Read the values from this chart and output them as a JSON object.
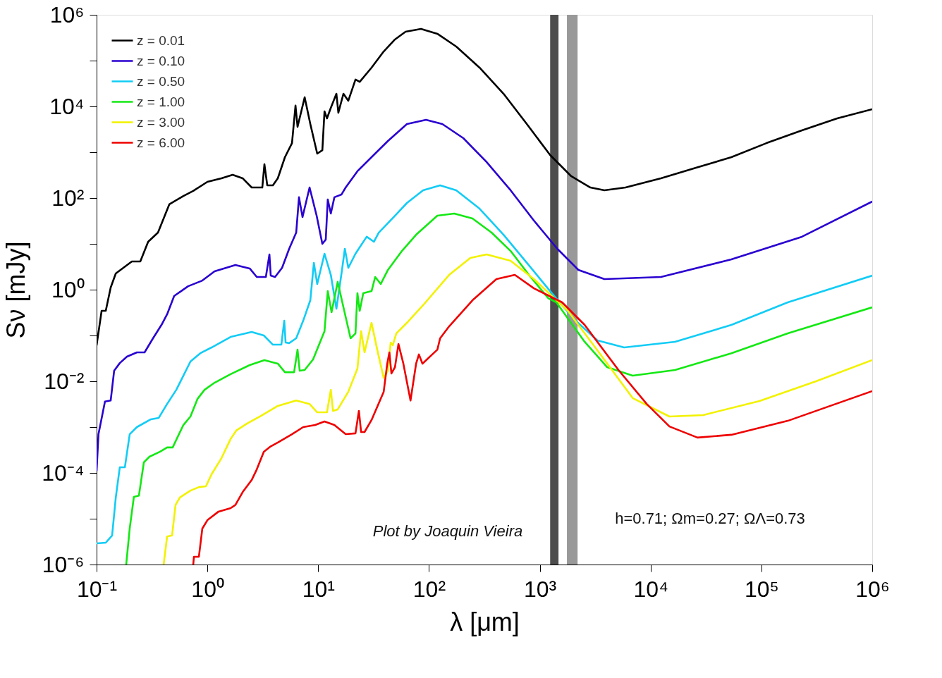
{
  "chart_data": {
    "type": "line",
    "xlabel": "λ [μm]",
    "ylabel": "Sν [mJy]",
    "log": "xy",
    "xlim": [
      0.1,
      1000000
    ],
    "ylim": [
      1e-06,
      1000000
    ],
    "xticks": [
      {
        "value": 0.1,
        "label": "10⁻¹"
      },
      {
        "value": 1,
        "label": "10⁰"
      },
      {
        "value": 10,
        "label": "10¹"
      },
      {
        "value": 100,
        "label": "10²"
      },
      {
        "value": 1000,
        "label": "10³"
      },
      {
        "value": 10000,
        "label": "10⁴"
      },
      {
        "value": 100000,
        "label": "10⁵"
      },
      {
        "value": 1000000,
        "label": "10⁶"
      }
    ],
    "yticks": [
      {
        "value": 1e-06,
        "label": "10⁻⁶"
      },
      {
        "value": 1e-05,
        "label": null
      },
      {
        "value": 0.0001,
        "label": "10⁻⁴"
      },
      {
        "value": 0.001,
        "label": null
      },
      {
        "value": 0.01,
        "label": "10⁻²"
      },
      {
        "value": 0.1,
        "label": null
      },
      {
        "value": 1,
        "label": "10⁰"
      },
      {
        "value": 10,
        "label": null
      },
      {
        "value": 100,
        "label": "10²"
      },
      {
        "value": 1000,
        "label": null
      },
      {
        "value": 10000,
        "label": "10⁴"
      },
      {
        "value": 100000,
        "label": null
      },
      {
        "value": 1000000,
        "label": "10⁶"
      }
    ],
    "legend": "top left",
    "grid": false,
    "marker": "none",
    "line_style": "solid",
    "bands": [
      {
        "axis": "x",
        "from": 1240,
        "to": 1475,
        "color": "#4d4d4d"
      },
      {
        "axis": "x",
        "from": 1757,
        "to": 2193,
        "color": "#999999"
      }
    ],
    "annotations": [
      "Plot by Joaquin Vieira",
      "h=0.71; Ωm=0.27; ΩΛ=0.73"
    ],
    "series": [
      {
        "name": "z = 0.01",
        "color": "#000000",
        "x": [
          0.1,
          0.111,
          0.121,
          0.134,
          0.149,
          0.208,
          0.248,
          0.292,
          0.358,
          0.453,
          0.607,
          0.745,
          1.0,
          1.34,
          1.69,
          2.08,
          2.51,
          3.13,
          3.27,
          3.47,
          3.9,
          4.32,
          5.01,
          5.8,
          6.24,
          6.51,
          7.55,
          8.49,
          9.8,
          10.9,
          11.4,
          12.0,
          13.0,
          14.6,
          15.2,
          16.9,
          18.7,
          21.7,
          23.7,
          30.3,
          39.0,
          49.3,
          61.4,
          84.7,
          119,
          176,
          286,
          471,
          764,
          1240,
          1920,
          2860,
          3830,
          5940,
          12400,
          25700,
          53600,
          111000,
          232000,
          483000,
          1000000
        ],
        "values": [
          0.061,
          0.345,
          0.345,
          1.11,
          2.26,
          4.12,
          4.12,
          11.1,
          17.6,
          72.8,
          111,
          143,
          226,
          270,
          322,
          270,
          170,
          170,
          547,
          189,
          189,
          270,
          780,
          1580,
          10400,
          3580,
          15800,
          4120,
          931,
          1110,
          7800,
          5470,
          9310,
          18900,
          7280,
          18900,
          13300,
          38500,
          34500,
          70200,
          158000,
          290000,
          428000,
          492000,
          385000,
          203000,
          70200,
          18900,
          4120,
          867,
          300,
          170,
          148,
          170,
          270,
          459,
          780,
          1580,
          3000,
          5470,
          8670
        ]
      },
      {
        "name": "z = 0.10",
        "color": "#2a00d0",
        "x": [
          0.1,
          0.104,
          0.119,
          0.134,
          0.144,
          0.162,
          0.188,
          0.231,
          0.271,
          0.323,
          0.385,
          0.433,
          0.501,
          0.67,
          0.9,
          1.16,
          1.79,
          2.41,
          2.79,
          3.37,
          3.63,
          3.73,
          4.08,
          4.72,
          5.47,
          6.33,
          6.71,
          7.22,
          8.36,
          9.68,
          10.9,
          11.7,
          12.2,
          13.0,
          14.0,
          16.2,
          17.7,
          22.6,
          30.3,
          42.6,
          63.2,
          94.0,
          132,
          204,
          331,
          545,
          885,
          1440,
          2230,
          3830,
          12400,
          53600,
          232000,
          1000000
        ],
        "values": [
          0.00011,
          0.0007,
          0.0036,
          0.0038,
          0.017,
          0.025,
          0.0345,
          0.0428,
          0.0428,
          0.0868,
          0.17,
          0.29,
          0.727,
          1.19,
          1.58,
          2.51,
          3.45,
          2.9,
          1.89,
          1.89,
          5.87,
          2.03,
          1.89,
          3.0,
          7.8,
          17.6,
          104,
          38.5,
          170,
          41.2,
          10,
          12.4,
          93,
          45.9,
          104,
          119,
          170,
          385,
          780,
          1760,
          4120,
          5100,
          4120,
          2030,
          610,
          148,
          32.2,
          7.8,
          2.7,
          1.7,
          1.89,
          4.59,
          14.3,
          83.8
        ]
      },
      {
        "name": "z = 0.50",
        "color": "#12ccf5",
        "x": [
          0.1,
          0.121,
          0.138,
          0.149,
          0.162,
          0.18,
          0.199,
          0.231,
          0.309,
          0.363,
          0.433,
          0.524,
          0.703,
          0.863,
          1.09,
          1.62,
          2.51,
          3.23,
          3.9,
          4.65,
          4.94,
          5.08,
          5.47,
          6.33,
          7.32,
          8.49,
          9.14,
          9.8,
          11.4,
          13.0,
          14.6,
          16.4,
          17.4,
          18.7,
          21.7,
          27.4,
          31.8,
          35.2,
          49.3,
          63.2,
          88.5,
          126,
          176,
          286,
          471,
          764,
          1240,
          2040,
          3310,
          5770,
          16600,
          53600,
          173000,
          1000000
        ],
        "values": [
          2.9e-06,
          3e-06,
          4.3e-06,
          2.9e-05,
          0.000133,
          0.000133,
          0.0007,
          0.001,
          0.00148,
          0.00158,
          0.0032,
          0.0065,
          0.027,
          0.041,
          0.0547,
          0.093,
          0.119,
          0.1,
          0.063,
          0.063,
          0.21,
          0.07,
          0.068,
          0.0868,
          0.21,
          0.587,
          3.85,
          1.33,
          6.09,
          2.1,
          0.385,
          2.7,
          7.8,
          3.0,
          6.09,
          14.3,
          11.1,
          17.6,
          41.2,
          78,
          148,
          189,
          148,
          58.7,
          15.8,
          3.85,
          0.93,
          0.226,
          0.078,
          0.0547,
          0.0728,
          0.17,
          0.528,
          2.03
        ]
      },
      {
        "name": "z = 1.00",
        "color": "#14e814",
        "x": [
          0.185,
          0.199,
          0.217,
          0.241,
          0.267,
          0.3,
          0.374,
          0.433,
          0.486,
          0.607,
          0.703,
          0.813,
          0.942,
          1.16,
          1.62,
          2.41,
          3.27,
          4.32,
          5.01,
          6.06,
          6.51,
          6.81,
          7.55,
          8.99,
          11.4,
          12.2,
          13.2,
          15.0,
          16.9,
          19.6,
          21.7,
          22.6,
          23.7,
          25.5,
          30.3,
          32.7,
          36.7,
          42.6,
          57.0,
          76.5,
          119,
          169,
          247,
          367,
          545,
          798,
          1190,
          1410,
          2540,
          4060,
          6890,
          16600,
          53600,
          173000,
          1000000
        ],
        "values": [
          1e-06,
          6.1e-06,
          3e-05,
          3.2e-05,
          0.00017,
          0.000226,
          0.00029,
          0.00036,
          0.00036,
          0.00111,
          0.0017,
          0.0041,
          0.0065,
          0.0093,
          0.0143,
          0.0226,
          0.029,
          0.0243,
          0.0158,
          0.0158,
          0.049,
          0.017,
          0.0176,
          0.03,
          0.124,
          0.93,
          0.322,
          1.48,
          0.412,
          0.0868,
          0.111,
          0.837,
          0.345,
          0.837,
          0.93,
          1.89,
          1.33,
          2.7,
          7.0,
          15.8,
          41.2,
          45.9,
          35.8,
          17.6,
          7.0,
          2.1,
          0.653,
          0.528,
          0.0728,
          0.0203,
          0.0133,
          0.0176,
          0.041,
          0.111,
          0.412
        ]
      },
      {
        "name": "z = 3.00",
        "color": "#f2f200",
        "x": [
          0.403,
          0.433,
          0.48,
          0.516,
          0.564,
          0.703,
          0.838,
          0.97,
          1.09,
          1.34,
          1.62,
          1.82,
          2.27,
          3.04,
          4.32,
          6.33,
          8.36,
          9.8,
          12.0,
          13.0,
          13.6,
          15.0,
          18.7,
          22.6,
          24.4,
          26.2,
          30.3,
          34.1,
          39.0,
          42.6,
          45.1,
          47.1,
          50.7,
          63.2,
          88.5,
          152,
          236,
          331,
          545,
          885,
          1790,
          3610,
          6890,
          14800,
          29800,
          96200,
          311000,
          1000000
        ],
        "values": [
          1e-06,
          4.1e-06,
          4.3e-06,
          2e-05,
          2.9e-05,
          4.1e-05,
          4.9e-05,
          5.1e-05,
          9.3e-05,
          0.00021,
          0.00055,
          0.00084,
          0.00119,
          0.00176,
          0.0029,
          0.0038,
          0.0032,
          0.0021,
          0.0021,
          0.0065,
          0.00226,
          0.00243,
          0.0059,
          0.0189,
          0.124,
          0.0428,
          0.189,
          0.049,
          0.0119,
          0.017,
          0.07,
          0.061,
          0.111,
          0.189,
          0.459,
          2.1,
          4.92,
          5.87,
          4.28,
          1.7,
          0.345,
          0.0358,
          0.0043,
          0.0017,
          0.00183,
          0.0037,
          0.01,
          0.029
        ]
      },
      {
        "name": "z = 6.00",
        "color": "#ee0000",
        "x": [
          0.745,
          0.756,
          0.838,
          0.9,
          1.0,
          1.26,
          1.62,
          1.79,
          2.08,
          2.51,
          2.79,
          3.23,
          3.73,
          4.32,
          5.8,
          7.32,
          9.4,
          11.4,
          14.0,
          17.7,
          21.7,
          23.3,
          24.4,
          26.2,
          30.3,
          39.0,
          42.0,
          43.9,
          45.8,
          49.3,
          53.0,
          58.7,
          68.1,
          76.5,
          81.1,
          87.3,
          119,
          126,
          152,
          247,
          406,
          595,
          885,
          1590,
          2540,
          5130,
          9220,
          14800,
          26500,
          53600,
          173000,
          1000000
        ],
        "values": [
          1e-06,
          1.48e-06,
          1.48e-06,
          6.1e-06,
          9.3e-06,
          1.43e-05,
          1.7e-05,
          2e-05,
          3.8e-05,
          7e-05,
          0.000119,
          0.00029,
          0.00038,
          0.00046,
          0.0007,
          0.001,
          0.00111,
          0.00133,
          0.00111,
          0.0007,
          0.00073,
          0.00226,
          0.00078,
          0.00078,
          0.00143,
          0.0059,
          0.0243,
          0.0428,
          0.0148,
          0.0203,
          0.065,
          0.0243,
          0.0038,
          0.0243,
          0.0385,
          0.0243,
          0.049,
          0.0868,
          0.158,
          0.587,
          1.7,
          2.1,
          1.07,
          0.528,
          0.17,
          0.0176,
          0.0032,
          0.00103,
          0.00059,
          0.00068,
          0.00137,
          0.0061
        ]
      }
    ]
  }
}
